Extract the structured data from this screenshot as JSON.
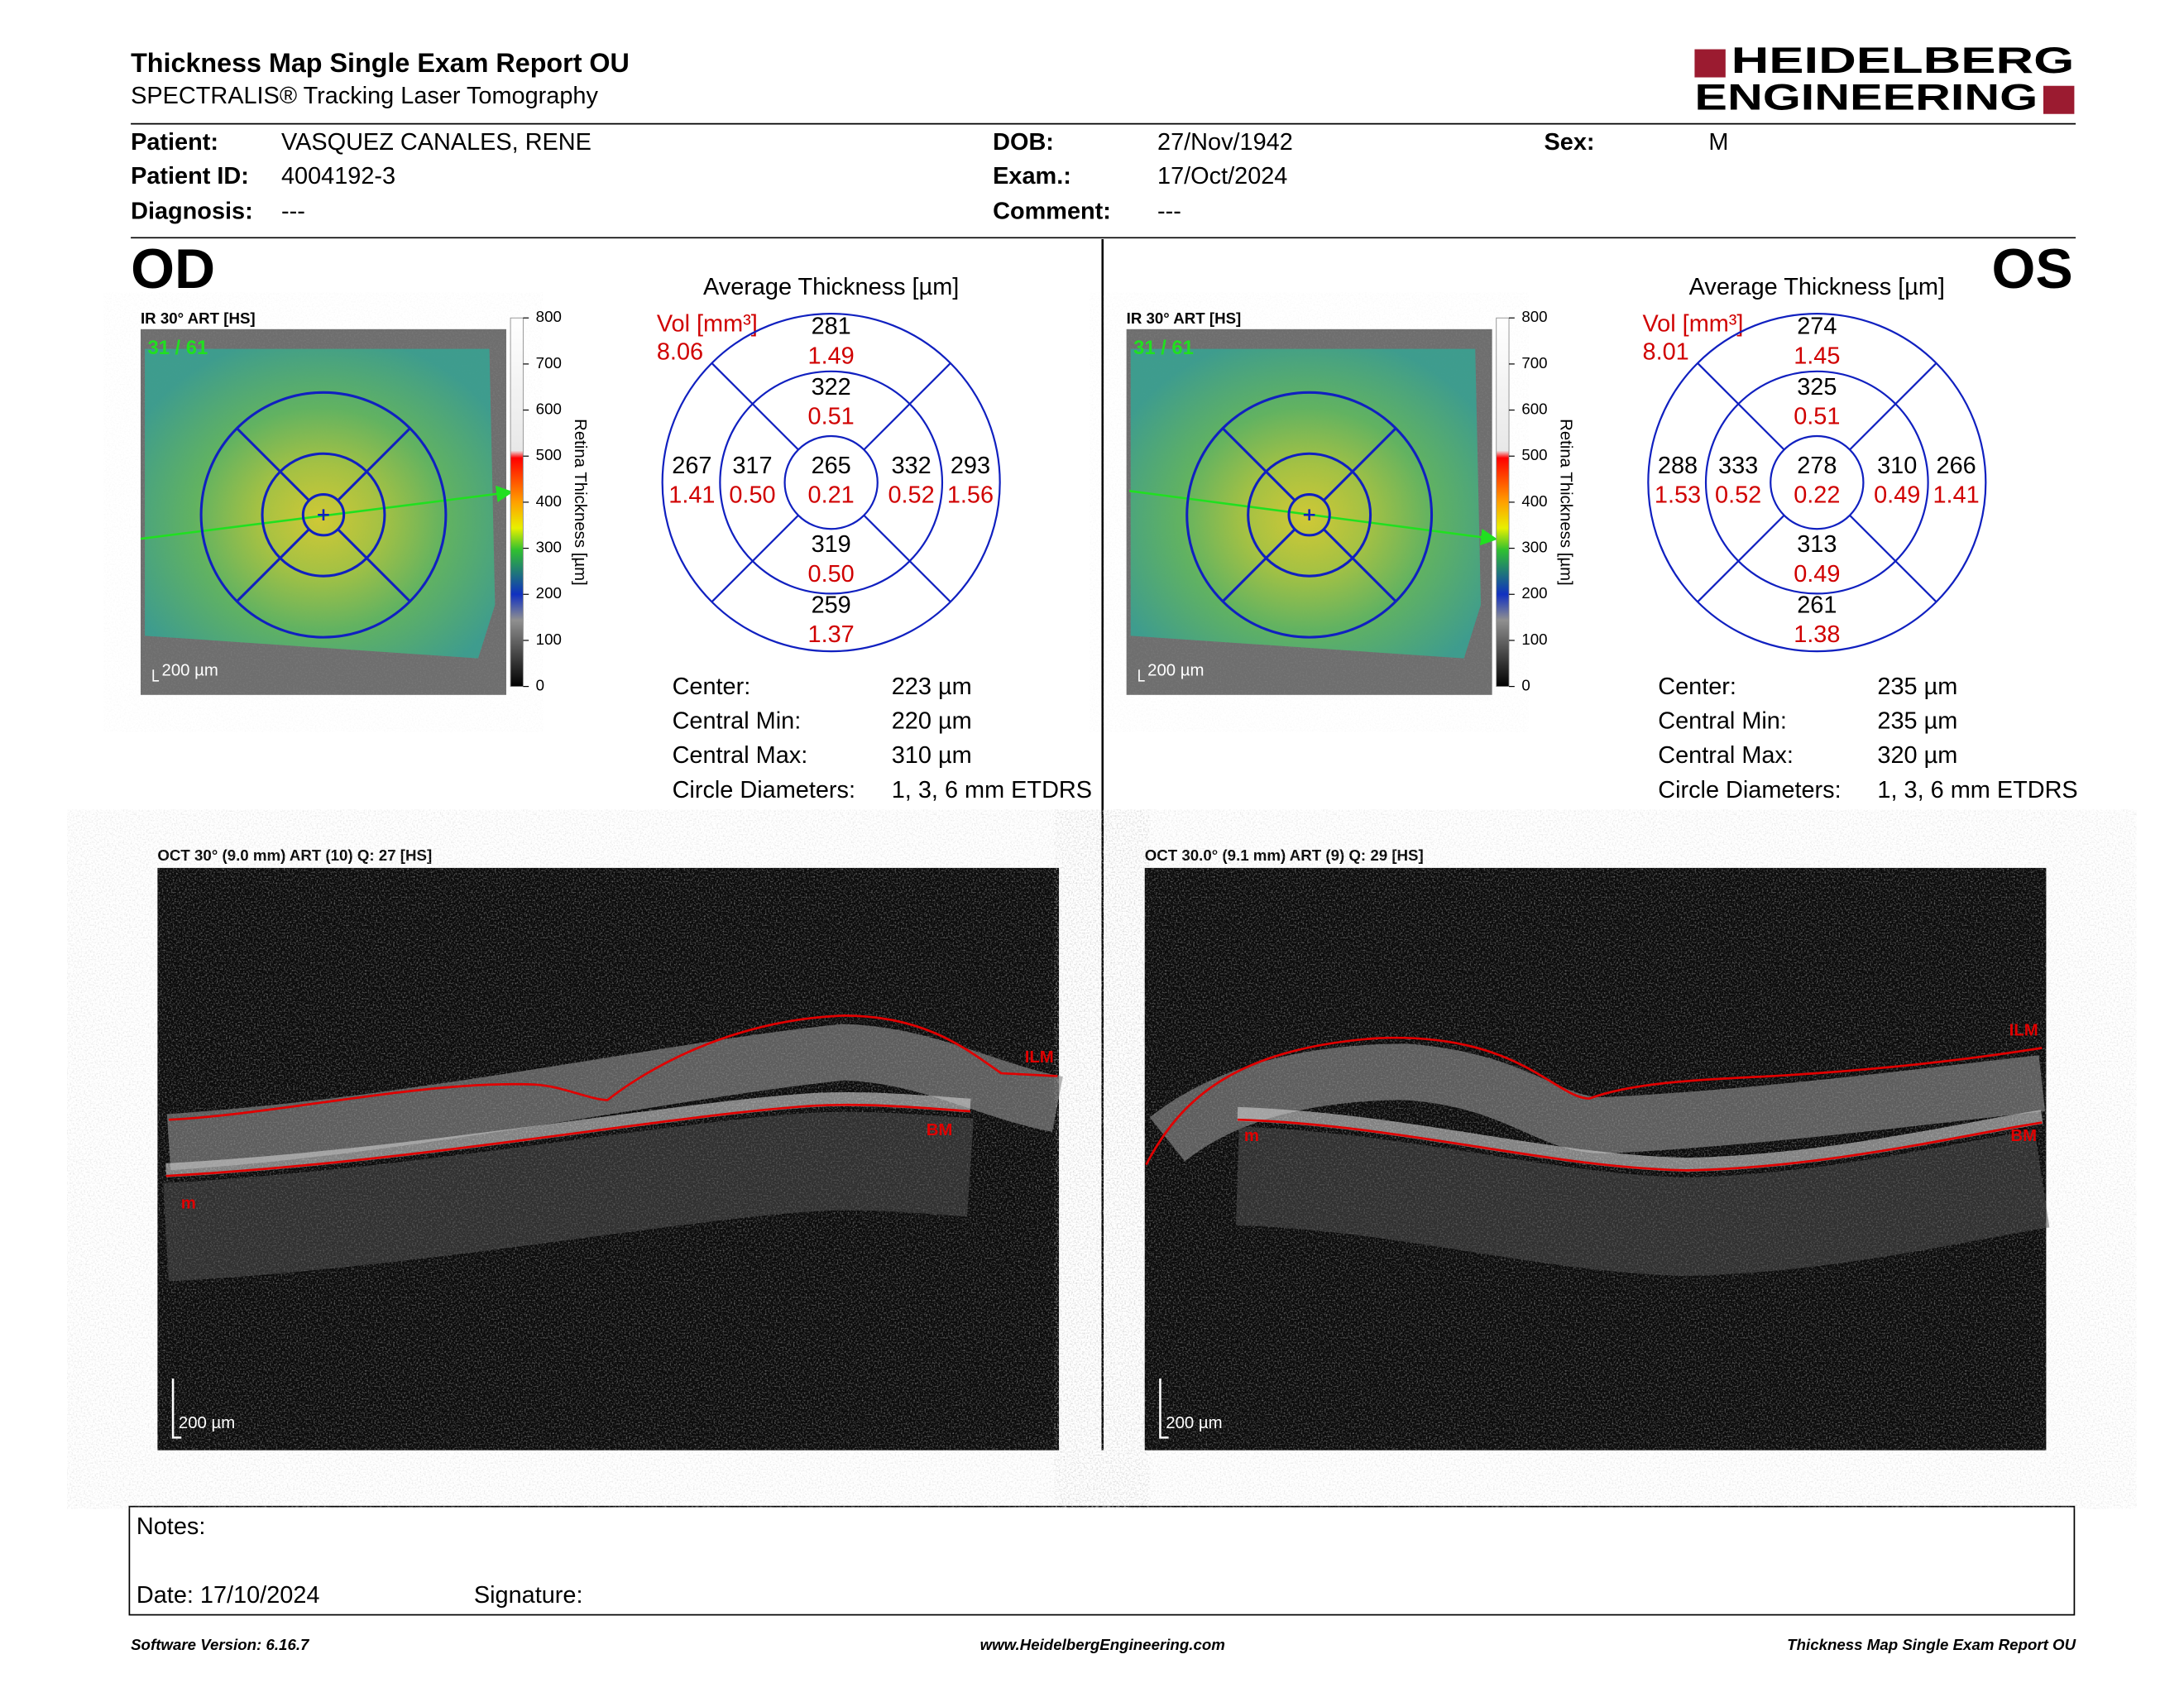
{
  "header": {
    "title": "Thickness Map Single Exam Report OU",
    "subtitle": "SPECTRALIS® Tracking Laser Tomography",
    "logo_top": "HEIDELBERG",
    "logo_bottom": "ENGINEERING"
  },
  "patient": [
    {
      "label": "Patient:",
      "value": "VASQUEZ CANALES, RENE"
    },
    {
      "label": "Patient ID:",
      "value": "4004192-3"
    },
    {
      "label": "Diagnosis:",
      "value": "---"
    },
    {
      "label": "DOB:",
      "value": "27/Nov/1942"
    },
    {
      "label": "Exam.:",
      "value": "17/Oct/2024"
    },
    {
      "label": "Comment:",
      "value": "---"
    },
    {
      "label": "Sex:",
      "value": "M"
    }
  ],
  "eyes": [
    {
      "label": "OD",
      "ir_label": "IR 30° ART [HS]",
      "frame": "31 / 61",
      "ir_scale": "200 µm",
      "colorbar": {
        "ticks": [
          800,
          700,
          600,
          500,
          400,
          300,
          200,
          100,
          0
        ],
        "label": "Retina Thickness [µm]"
      },
      "map_title": "Average Thickness [µm]",
      "vol_label": "Vol [mm³]",
      "vol_total": "8.06",
      "sectors": [
        {
          "thickness": 281,
          "volume": "1.49"
        },
        {
          "thickness": 322,
          "volume": "0.51"
        },
        {
          "thickness": 267,
          "volume": "1.41"
        },
        {
          "thickness": 317,
          "volume": "0.50"
        },
        {
          "thickness": 265,
          "volume": "0.21"
        },
        {
          "thickness": 332,
          "volume": "0.52"
        },
        {
          "thickness": 293,
          "volume": "1.56"
        },
        {
          "thickness": 319,
          "volume": "0.50"
        },
        {
          "thickness": 259,
          "volume": "1.37"
        }
      ],
      "stats": [
        {
          "label": "Center:",
          "value": "223 µm"
        },
        {
          "label": "Central Min:",
          "value": "220 µm"
        },
        {
          "label": "Central Max:",
          "value": "310 µm"
        },
        {
          "label": "Circle Diameters:",
          "value": "1, 3, 6 mm ETDRS"
        }
      ],
      "oct": {
        "label": "OCT 30° (9.0 mm) ART (10) Q: 27 [HS]",
        "scale": "200 µm",
        "layers": [
          "ILM",
          "BM",
          "m"
        ]
      }
    },
    {
      "label": "OS",
      "ir_label": "IR 30° ART [HS]",
      "frame": "31 / 61",
      "ir_scale": "200 µm",
      "colorbar": {
        "ticks": [
          800,
          700,
          600,
          500,
          400,
          300,
          200,
          100,
          0
        ],
        "label": "Retina Thickness [µm]"
      },
      "map_title": "Average Thickness [µm]",
      "vol_label": "Vol [mm³]",
      "vol_total": "8.01",
      "sectors": [
        {
          "thickness": 274,
          "volume": "1.45"
        },
        {
          "thickness": 325,
          "volume": "0.51"
        },
        {
          "thickness": 288,
          "volume": "1.53"
        },
        {
          "thickness": 333,
          "volume": "0.52"
        },
        {
          "thickness": 278,
          "volume": "0.22"
        },
        {
          "thickness": 310,
          "volume": "0.49"
        },
        {
          "thickness": 266,
          "volume": "1.41"
        },
        {
          "thickness": 313,
          "volume": "0.49"
        },
        {
          "thickness": 261,
          "volume": "1.38"
        }
      ],
      "stats": [
        {
          "label": "Center:",
          "value": "235 µm"
        },
        {
          "label": "Central Min:",
          "value": "235 µm"
        },
        {
          "label": "Central Max:",
          "value": "320 µm"
        },
        {
          "label": "Circle Diameters:",
          "value": "1, 3, 6 mm ETDRS"
        }
      ],
      "oct": {
        "label": "OCT 30.0° (9.1 mm) ART (9) Q: 29 [HS]",
        "scale": "200 µm",
        "layers": [
          "ILM",
          "BM",
          "m"
        ]
      }
    }
  ],
  "notes": {
    "label": "Notes:",
    "date": "Date: 17/10/2024",
    "signature": "Signature:"
  },
  "footer": {
    "software": "Software Version: 6.16.7",
    "website": "www.HeidelbergEngineering.com",
    "report": "Thickness Map Single Exam Report OU"
  }
}
